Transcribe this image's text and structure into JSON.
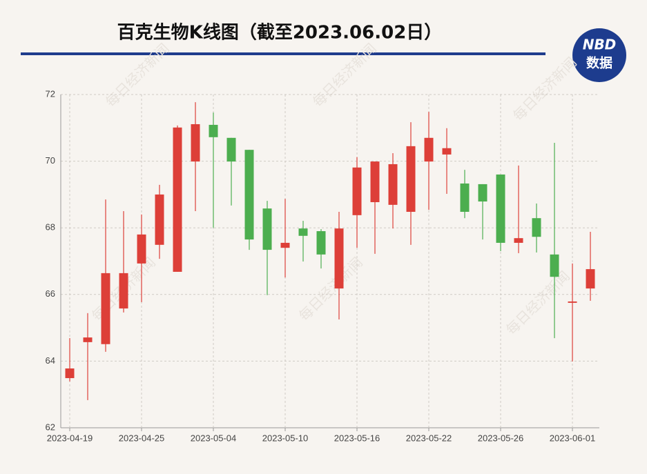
{
  "title": "百克生物K线图（截至2023.06.02日）",
  "logo": {
    "top": "NBD",
    "bottom": "数据"
  },
  "watermark": "每日经济新闻",
  "chart_data": {
    "type": "candlestick",
    "categories": [
      "2023-04-19",
      null,
      null,
      null,
      "2023-04-25",
      null,
      null,
      null,
      "2023-05-04",
      null,
      null,
      null,
      "2023-05-10",
      null,
      null,
      null,
      "2023-05-16",
      null,
      null,
      null,
      "2023-05-22",
      null,
      null,
      null,
      "2023-05-26",
      null,
      null,
      null,
      "2023-06-01",
      null
    ],
    "open": [
      63.49,
      64.57,
      64.51,
      65.58,
      66.93,
      67.49,
      66.68,
      69.99,
      71.09,
      70.7,
      70.34,
      68.58,
      67.4,
      67.98,
      67.9,
      66.18,
      68.38,
      68.77,
      68.69,
      68.48,
      69.99,
      70.2,
      69.33,
      69.31,
      69.6,
      67.55,
      68.29,
      67.2,
      65.75,
      66.18
    ],
    "close": [
      63.78,
      64.71,
      66.64,
      66.64,
      67.8,
      69.0,
      71.01,
      71.11,
      70.72,
      69.99,
      67.65,
      67.34,
      67.55,
      67.76,
      67.2,
      67.98,
      69.81,
      69.99,
      69.91,
      70.45,
      70.7,
      70.39,
      68.48,
      68.79,
      67.55,
      67.69,
      67.73,
      66.53,
      65.79,
      66.76
    ],
    "high": [
      64.69,
      65.44,
      68.85,
      68.5,
      68.4,
      69.29,
      71.07,
      71.77,
      71.46,
      70.7,
      70.34,
      68.81,
      68.87,
      68.21,
      67.96,
      68.48,
      70.12,
      69.99,
      70.24,
      71.17,
      71.48,
      70.99,
      69.74,
      69.31,
      69.6,
      69.87,
      68.73,
      70.55,
      66.93,
      67.88
    ],
    "low": [
      63.39,
      62.83,
      64.28,
      65.46,
      65.77,
      67.07,
      66.68,
      68.5,
      68.0,
      68.67,
      67.34,
      65.98,
      66.51,
      66.99,
      66.78,
      65.25,
      67.4,
      67.22,
      67.98,
      67.49,
      68.54,
      69.02,
      68.29,
      67.65,
      67.3,
      67.24,
      67.26,
      64.69,
      63.99,
      65.81
    ],
    "up_color": "#dd3f38",
    "down_color": "#4cae4f",
    "ylim": [
      62,
      72
    ],
    "yticks": [
      62,
      64,
      66,
      68,
      70,
      72
    ],
    "grid": true
  }
}
